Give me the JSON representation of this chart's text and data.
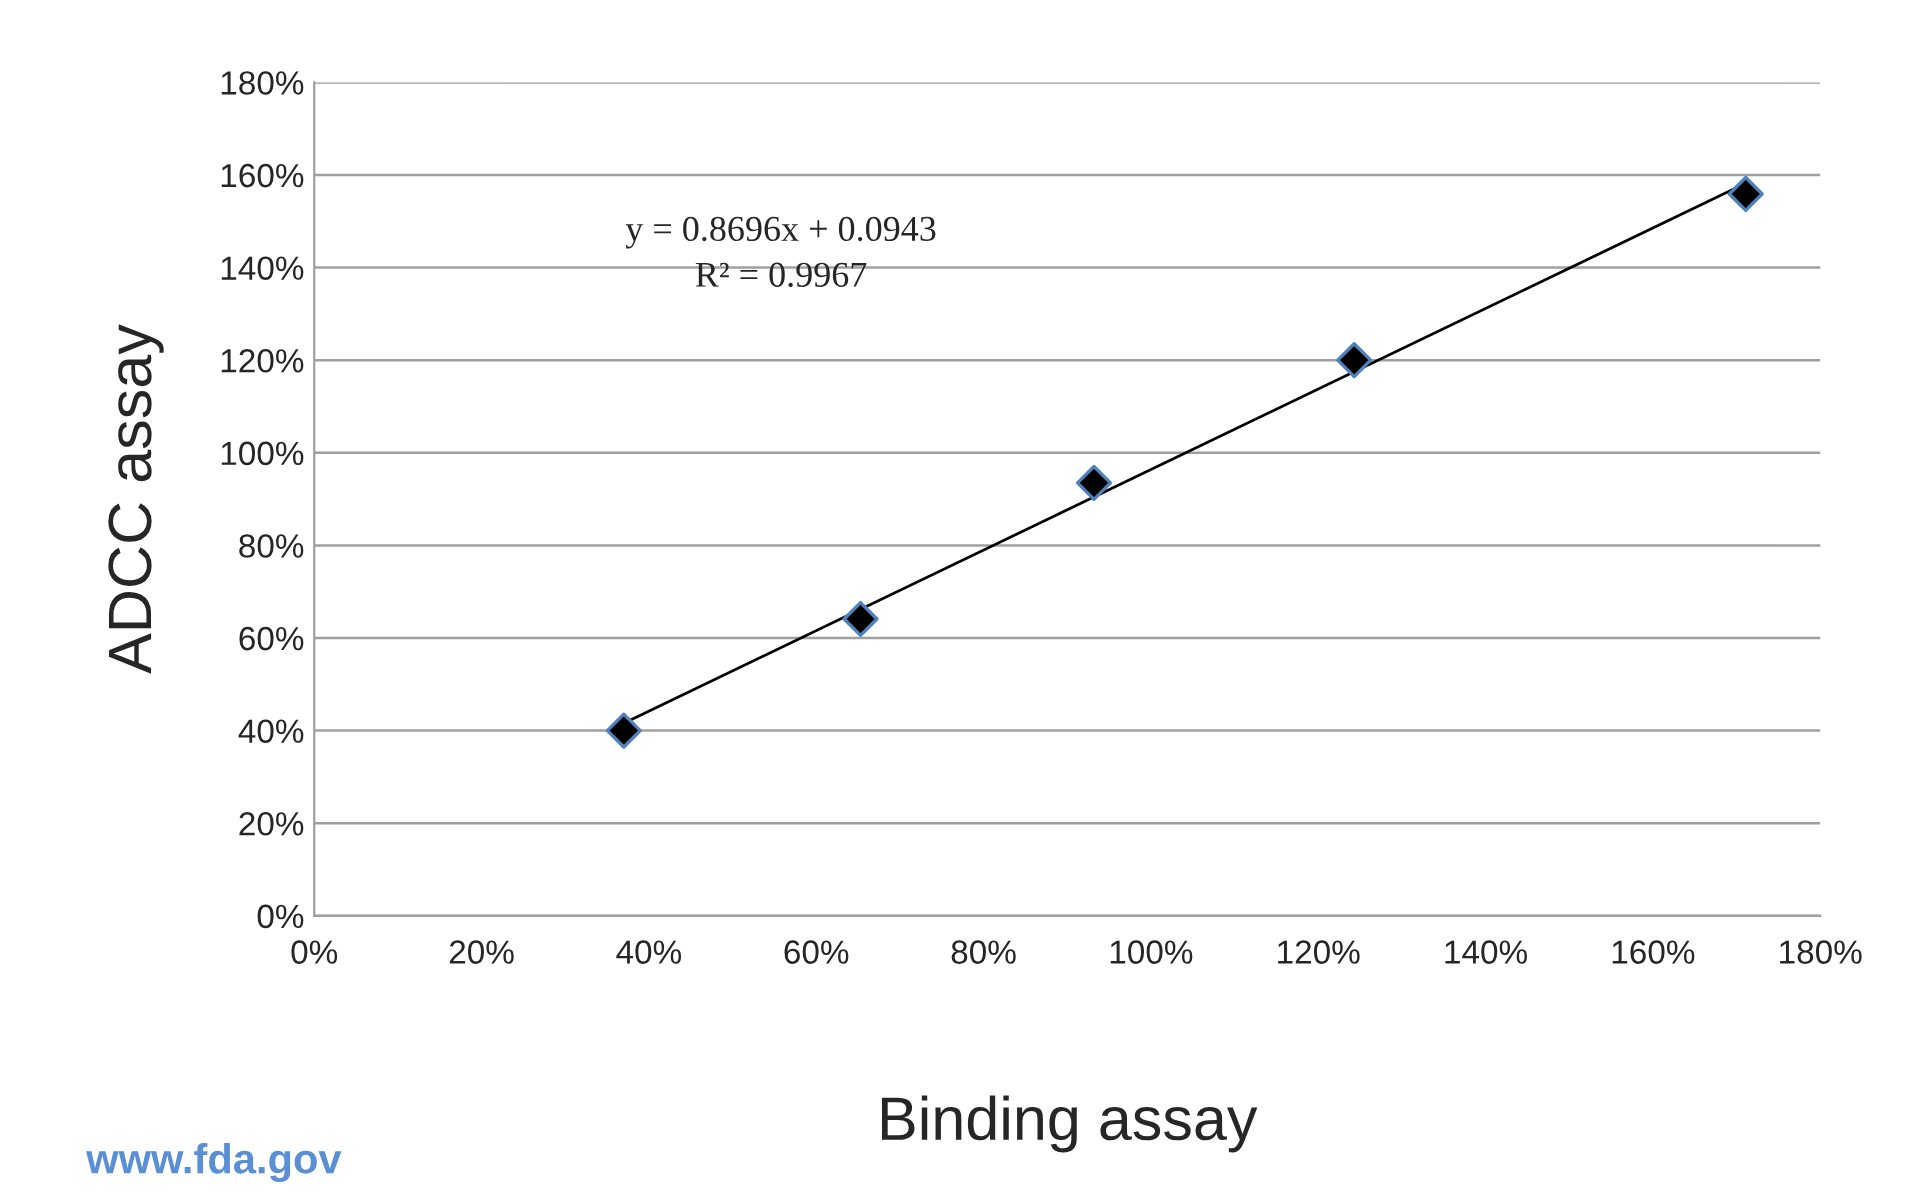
{
  "chart_data": {
    "type": "scatter",
    "xlabel": "Binding assay",
    "ylabel": "ADCC assay",
    "series": [
      {
        "color": "#000000",
        "marker": "diamond",
        "x": [
          37.0,
          65.3,
          93.2,
          124.3,
          171.1
        ],
        "values": [
          40,
          64.1,
          93.5,
          120,
          155.9
        ]
      },
      {
        "type": "line",
        "color": "#000000",
        "marker": "none",
        "line_style": "solid",
        "x": [
          37.0,
          171.1
        ],
        "values": [
          41.6,
          158.2
        ]
      }
    ],
    "xlim": [
      0,
      180
    ],
    "ylim": [
      0,
      180
    ],
    "xticks": [
      {
        "value": 0,
        "label": "0%"
      },
      {
        "value": 20,
        "label": "20%"
      },
      {
        "value": 40,
        "label": "40%"
      },
      {
        "value": 60,
        "label": "60%"
      },
      {
        "value": 80,
        "label": "80%"
      },
      {
        "value": 100,
        "label": "100%"
      },
      {
        "value": 120,
        "label": "120%"
      },
      {
        "value": 140,
        "label": "140%"
      },
      {
        "value": 160,
        "label": "160%"
      },
      {
        "value": 180,
        "label": "180%"
      }
    ],
    "yticks": [
      {
        "value": 0,
        "label": "0%"
      },
      {
        "value": 20,
        "label": "20%"
      },
      {
        "value": 40,
        "label": "40%"
      },
      {
        "value": 60,
        "label": "60%"
      },
      {
        "value": 80,
        "label": "80%"
      },
      {
        "value": 100,
        "label": "100%"
      },
      {
        "value": 120,
        "label": "120%"
      },
      {
        "value": 140,
        "label": "140%"
      },
      {
        "value": 160,
        "label": "160%"
      },
      {
        "value": 180,
        "label": "180%"
      }
    ],
    "grid": "y",
    "legend": false,
    "annotations": [
      "y = 0.8696x + 0.0943",
      "R² = 0.9967",
      "www.fda.gov"
    ]
  }
}
